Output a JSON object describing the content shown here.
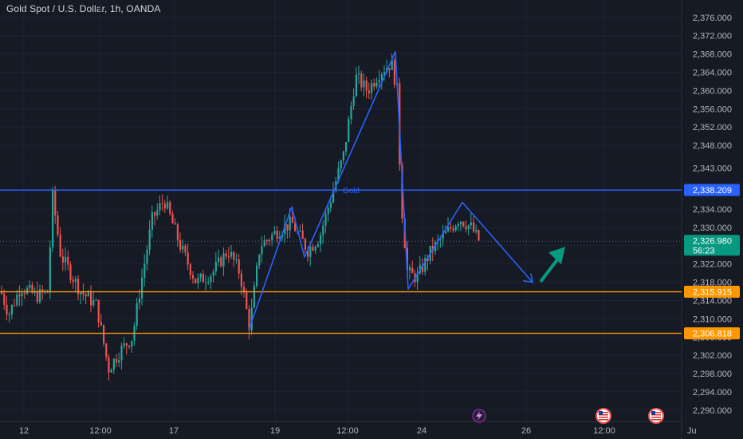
{
  "header": {
    "title": "Gold Spot / U.S. Dollar, 1h, OANDA"
  },
  "colors": {
    "background": "#161a25",
    "up_candle": "#26a69a",
    "down_candle": "#ef5350",
    "pattern_line": "#2962ff",
    "resistance_line": "#2962ff",
    "support_line": "#ff9800",
    "arrow": "#089981"
  },
  "chart_data": {
    "type": "candlestick",
    "title": "Gold Spot / U.S. Dollar, 1h, OANDA",
    "y_axis": {
      "range": [
        2288.0,
        2378.0
      ],
      "ticks": [
        "2,376.000",
        "2,372.000",
        "2,368.000",
        "2,364.000",
        "2,360.000",
        "2,356.000",
        "2,352.000",
        "2,348.000",
        "2,343.000",
        "2,338.000",
        "2,334.000",
        "2,330.000",
        "2,326.000",
        "2,322.000",
        "2,318.000",
        "2,314.000",
        "2,310.000",
        "2,306.000",
        "2,302.000",
        "2,298.000",
        "2,294.000",
        "2,290.000"
      ]
    },
    "x_axis": {
      "ticks": [
        "12",
        "12:00",
        "17",
        "19",
        "12:00",
        "24",
        "26",
        "12:00",
        "Ju"
      ]
    },
    "price_levels": [
      {
        "name": "resistance",
        "value": 2338.209,
        "label": "2,338.209",
        "color": "#2962ff"
      },
      {
        "name": "support-1",
        "value": 2315.915,
        "label": "2,315.915",
        "color": "#ff9800"
      },
      {
        "name": "support-2",
        "value": 2306.818,
        "label": "2,306.818",
        "color": "#ff9800"
      }
    ],
    "current_price": {
      "value": 2326.98,
      "label": "2,326.980",
      "countdown": "56:23",
      "color": "#089981"
    },
    "drawing_label": "Gold",
    "pattern_path_values": [
      2307.5,
      2334.5,
      2323.5,
      2368.5,
      2316.5,
      2335.5,
      2318.0
    ],
    "arrow_values": [
      2318.0,
      2324.0
    ],
    "event_icons": [
      "lightning-icon",
      "us-flag-icon",
      "us-flag-icon"
    ]
  }
}
